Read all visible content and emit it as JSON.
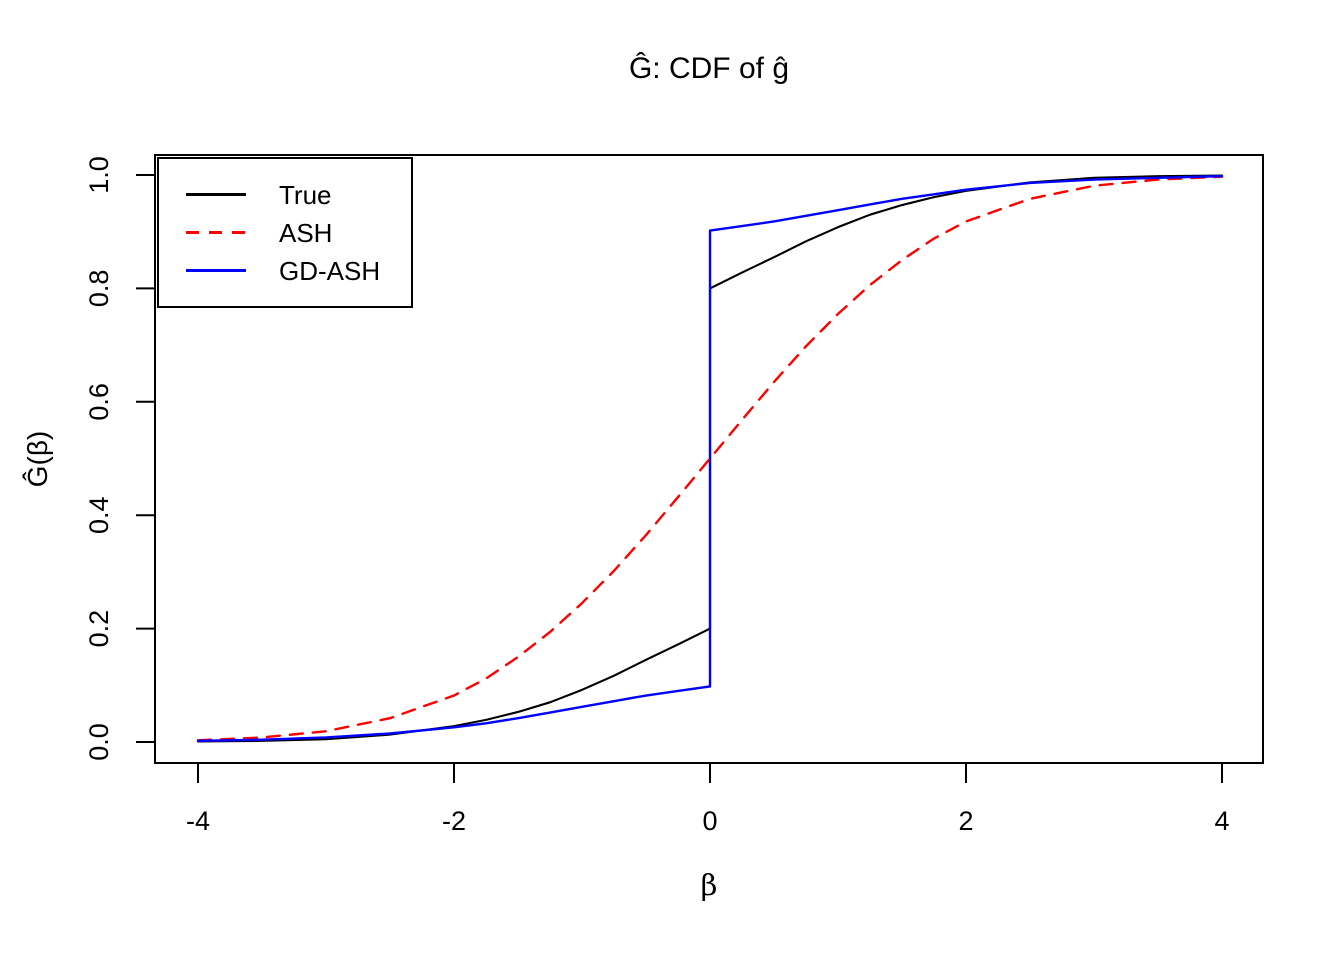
{
  "chart_data": {
    "type": "line",
    "title": "Ĝ: CDF of ĝ",
    "xlabel": "β",
    "ylabel": "Ĝ(β)",
    "xlim": [
      -4.3,
      4.3
    ],
    "ylim": [
      -0.04,
      1.04
    ],
    "grid": false,
    "legend_position": "top-left",
    "x_ticks": {
      "values": [
        -4,
        -2,
        0,
        2,
        4
      ],
      "labels": [
        "-4",
        "-2",
        "0",
        "2",
        "4"
      ]
    },
    "y_ticks": {
      "values": [
        0,
        0.2,
        0.4,
        0.6,
        0.8,
        1.0
      ],
      "labels": [
        "0.0",
        "0.2",
        "0.4",
        "0.6",
        "0.8",
        "1.0"
      ]
    },
    "series": [
      {
        "name": "True",
        "color": "#000000",
        "line_style": "solid",
        "points": [
          [
            -4,
            0.001
          ],
          [
            -3.5,
            0.002
          ],
          [
            -3,
            0.005
          ],
          [
            -2.5,
            0.013
          ],
          [
            -2,
            0.028
          ],
          [
            -1.75,
            0.039
          ],
          [
            -1.5,
            0.053
          ],
          [
            -1.25,
            0.07
          ],
          [
            -1,
            0.092
          ],
          [
            -0.75,
            0.117
          ],
          [
            -0.5,
            0.145
          ],
          [
            -0.25,
            0.172
          ],
          [
            0,
            0.2
          ],
          [
            0,
            0.8
          ],
          [
            0.25,
            0.828
          ],
          [
            0.5,
            0.855
          ],
          [
            0.75,
            0.883
          ],
          [
            1,
            0.908
          ],
          [
            1.25,
            0.93
          ],
          [
            1.5,
            0.947
          ],
          [
            1.75,
            0.961
          ],
          [
            2,
            0.972
          ],
          [
            2.5,
            0.987
          ],
          [
            3,
            0.995
          ],
          [
            3.5,
            0.998
          ],
          [
            4,
            0.999
          ]
        ]
      },
      {
        "name": "ASH",
        "color": "#FF0000",
        "line_style": "dashed",
        "points": [
          [
            -4,
            0.003
          ],
          [
            -3.5,
            0.008
          ],
          [
            -3,
            0.019
          ],
          [
            -2.5,
            0.042
          ],
          [
            -2,
            0.082
          ],
          [
            -1.75,
            0.112
          ],
          [
            -1.5,
            0.15
          ],
          [
            -1.25,
            0.194
          ],
          [
            -1,
            0.245
          ],
          [
            -0.75,
            0.302
          ],
          [
            -0.5,
            0.365
          ],
          [
            -0.25,
            0.432
          ],
          [
            0,
            0.5
          ],
          [
            0.25,
            0.568
          ],
          [
            0.5,
            0.635
          ],
          [
            0.75,
            0.698
          ],
          [
            1,
            0.755
          ],
          [
            1.25,
            0.806
          ],
          [
            1.5,
            0.85
          ],
          [
            1.75,
            0.888
          ],
          [
            2,
            0.918
          ],
          [
            2.5,
            0.958
          ],
          [
            3,
            0.981
          ],
          [
            3.5,
            0.992
          ],
          [
            4,
            0.997
          ]
        ]
      },
      {
        "name": "GD-ASH",
        "color": "#0000FF",
        "line_style": "solid",
        "points": [
          [
            -4,
            0.002
          ],
          [
            -3.5,
            0.004
          ],
          [
            -3,
            0.008
          ],
          [
            -2.5,
            0.015
          ],
          [
            -2,
            0.026
          ],
          [
            -1.75,
            0.033
          ],
          [
            -1.5,
            0.042
          ],
          [
            -1.25,
            0.052
          ],
          [
            -1,
            0.062
          ],
          [
            -0.75,
            0.072
          ],
          [
            -0.5,
            0.082
          ],
          [
            -0.25,
            0.09
          ],
          [
            0,
            0.098
          ],
          [
            0,
            0.902
          ],
          [
            0.25,
            0.91
          ],
          [
            0.5,
            0.918
          ],
          [
            0.75,
            0.928
          ],
          [
            1,
            0.938
          ],
          [
            1.25,
            0.948
          ],
          [
            1.5,
            0.958
          ],
          [
            1.75,
            0.966
          ],
          [
            2,
            0.974
          ],
          [
            2.5,
            0.986
          ],
          [
            3,
            0.992
          ],
          [
            3.5,
            0.995
          ],
          [
            4,
            0.998
          ]
        ]
      }
    ],
    "colors": {
      "background": "#FFFFFF",
      "axis": "#000000"
    }
  }
}
